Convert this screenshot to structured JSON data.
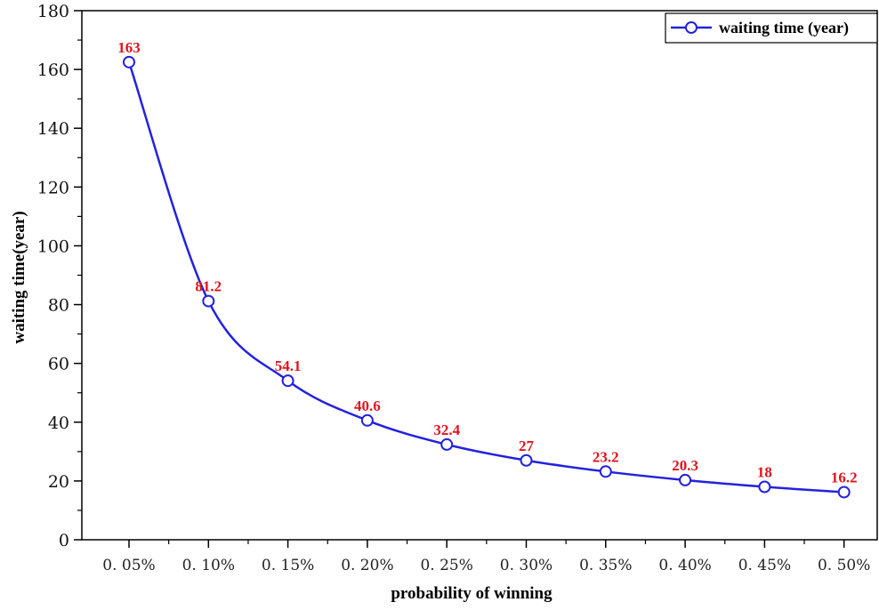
{
  "chart_data": {
    "type": "line",
    "categories": [
      "0.05%",
      "0.10%",
      "0.15%",
      "0.20%",
      "0.25%",
      "0.30%",
      "0.35%",
      "0.40%",
      "0.45%",
      "0.50%"
    ],
    "category_labels": [
      "0. 05%",
      "0. 10%",
      "0. 15%",
      "0. 20%",
      "0. 25%",
      "0. 30%",
      "0. 35%",
      "0. 40%",
      "0. 45%",
      "0. 50%"
    ],
    "series": [
      {
        "name": "waiting time (year)",
        "values": [
          162.5,
          81.2,
          54.1,
          40.6,
          32.4,
          27,
          23.2,
          20.3,
          18,
          16.2
        ],
        "labels": [
          "163",
          "81.2",
          "54.1",
          "40.6",
          "32.4",
          "27",
          "23.2",
          "20.3",
          "18",
          "16.2"
        ],
        "color": "#2222dd",
        "label_color": "#e0141e"
      }
    ],
    "xlabel": "probability of winning",
    "ylabel": "waiting time(year)",
    "ylim": [
      0,
      180
    ],
    "yticks": [
      0,
      20,
      40,
      60,
      80,
      100,
      120,
      140,
      160,
      180
    ],
    "grid": false,
    "legend": "top-right",
    "smooth": true
  }
}
